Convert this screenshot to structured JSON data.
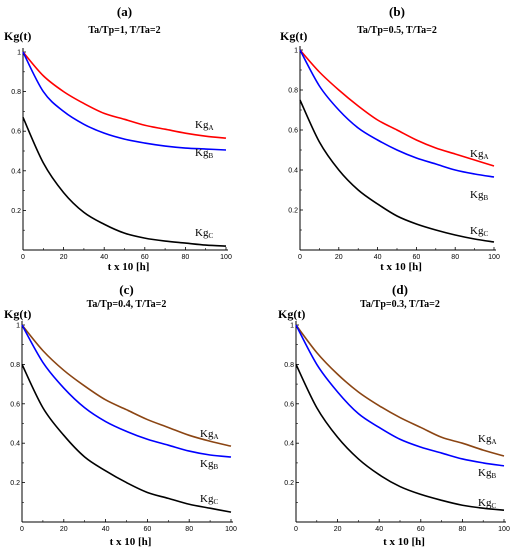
{
  "chart_data": [
    {
      "type": "line",
      "panel_label": "(a)",
      "title": "Ta/Tp=1,  T/Ta=2",
      "ylabel": "Kg(t)",
      "xlabel": "t x 10 [h]",
      "xlim": [
        0,
        100
      ],
      "ylim": [
        0,
        1
      ],
      "xticks": [
        "0",
        "20",
        "40",
        "60",
        "80",
        "100"
      ],
      "yticks": [
        "0.2",
        "0.4",
        "0.6",
        "0.8",
        "1"
      ],
      "grid": false,
      "series": [
        {
          "name": "KgA",
          "label_main": "Kg",
          "label_sub": "A",
          "color": "#ff0000",
          "x": [
            0,
            10,
            20,
            30,
            40,
            50,
            60,
            70,
            80,
            90,
            100
          ],
          "y": [
            1.0,
            0.88,
            0.8,
            0.74,
            0.69,
            0.66,
            0.63,
            0.61,
            0.59,
            0.575,
            0.565
          ]
        },
        {
          "name": "KgB",
          "label_main": "Kg",
          "label_sub": "B",
          "color": "#0000ff",
          "x": [
            0,
            10,
            20,
            30,
            40,
            50,
            60,
            70,
            80,
            90,
            100
          ],
          "y": [
            1.0,
            0.8,
            0.7,
            0.635,
            0.59,
            0.56,
            0.54,
            0.525,
            0.515,
            0.51,
            0.505
          ]
        },
        {
          "name": "KgC",
          "label_main": "Kg",
          "label_sub": "C",
          "color": "#000000",
          "x": [
            0,
            10,
            20,
            30,
            40,
            50,
            60,
            70,
            80,
            90,
            100
          ],
          "y": [
            0.67,
            0.44,
            0.29,
            0.19,
            0.13,
            0.085,
            0.06,
            0.045,
            0.035,
            0.025,
            0.02
          ]
        }
      ]
    },
    {
      "type": "line",
      "panel_label": "(b)",
      "title": "Ta/Tp=0.5,  T/Ta=2",
      "ylabel": "Kg(t)",
      "xlabel": "t x 10 [h]",
      "xlim": [
        0,
        100
      ],
      "ylim": [
        0,
        1
      ],
      "xticks": [
        "0",
        "20",
        "40",
        "60",
        "80",
        "100"
      ],
      "yticks": [
        "0.2",
        "0.4",
        "0.6",
        "0.8",
        "1"
      ],
      "grid": false,
      "series": [
        {
          "name": "KgA",
          "label_main": "Kg",
          "label_sub": "A",
          "color": "#ff0000",
          "x": [
            0,
            10,
            20,
            30,
            40,
            50,
            60,
            70,
            80,
            90,
            100
          ],
          "y": [
            1.0,
            0.89,
            0.8,
            0.72,
            0.65,
            0.6,
            0.55,
            0.51,
            0.48,
            0.45,
            0.42
          ]
        },
        {
          "name": "KgB",
          "label_main": "Kg",
          "label_sub": "B",
          "color": "#0000ff",
          "x": [
            0,
            10,
            20,
            30,
            40,
            50,
            60,
            70,
            80,
            90,
            100
          ],
          "y": [
            1.0,
            0.82,
            0.7,
            0.61,
            0.55,
            0.5,
            0.46,
            0.43,
            0.4,
            0.38,
            0.365
          ]
        },
        {
          "name": "KgC",
          "label_main": "Kg",
          "label_sub": "C",
          "color": "#000000",
          "x": [
            0,
            10,
            20,
            30,
            40,
            50,
            60,
            70,
            80,
            90,
            100
          ],
          "y": [
            0.75,
            0.54,
            0.4,
            0.3,
            0.23,
            0.17,
            0.13,
            0.1,
            0.075,
            0.055,
            0.04
          ]
        }
      ]
    },
    {
      "type": "line",
      "panel_label": "(c)",
      "title": "Ta/Tp=0.4,  T/Ta=2",
      "ylabel": "Kg(t)",
      "xlabel": "t x 10 [h]",
      "xlim": [
        0,
        100
      ],
      "ylim": [
        0,
        1
      ],
      "xticks": [
        "0",
        "20",
        "40",
        "60",
        "80",
        "100"
      ],
      "yticks": [
        "0.2",
        "0.4",
        "0.6",
        "0.8",
        "1"
      ],
      "grid": false,
      "series": [
        {
          "name": "KgA",
          "label_main": "Kg",
          "label_sub": "A",
          "color": "#8b4513",
          "x": [
            0,
            10,
            20,
            30,
            40,
            50,
            60,
            70,
            80,
            90,
            100
          ],
          "y": [
            1.0,
            0.87,
            0.77,
            0.69,
            0.62,
            0.57,
            0.52,
            0.48,
            0.44,
            0.41,
            0.385
          ]
        },
        {
          "name": "KgB",
          "label_main": "Kg",
          "label_sub": "B",
          "color": "#0000ff",
          "x": [
            0,
            10,
            20,
            30,
            40,
            50,
            60,
            70,
            80,
            90,
            100
          ],
          "y": [
            1.0,
            0.81,
            0.68,
            0.58,
            0.51,
            0.46,
            0.42,
            0.39,
            0.36,
            0.34,
            0.33
          ]
        },
        {
          "name": "KgC",
          "label_main": "Kg",
          "label_sub": "C",
          "color": "#000000",
          "x": [
            0,
            10,
            20,
            30,
            40,
            50,
            60,
            70,
            80,
            90,
            100
          ],
          "y": [
            0.8,
            0.58,
            0.44,
            0.33,
            0.26,
            0.2,
            0.15,
            0.12,
            0.09,
            0.07,
            0.05
          ]
        }
      ]
    },
    {
      "type": "line",
      "panel_label": "(d)",
      "title": "Ta/Tp=0.3,  T/Ta=2",
      "ylabel": "Kg(t)",
      "xlabel": "t x 10 [h]",
      "xlim": [
        0,
        100
      ],
      "ylim": [
        0,
        1
      ],
      "xticks": [
        "0",
        "20",
        "40",
        "60",
        "80",
        "100"
      ],
      "yticks": [
        "0.2",
        "0.4",
        "0.6",
        "0.8",
        "1"
      ],
      "grid": false,
      "series": [
        {
          "name": "KgA",
          "label_main": "Kg",
          "label_sub": "A",
          "color": "#8b4513",
          "x": [
            0,
            10,
            20,
            30,
            40,
            50,
            60,
            70,
            80,
            90,
            100
          ],
          "y": [
            1.0,
            0.86,
            0.75,
            0.66,
            0.59,
            0.53,
            0.48,
            0.43,
            0.4,
            0.365,
            0.335
          ]
        },
        {
          "name": "KgB",
          "label_main": "Kg",
          "label_sub": "B",
          "color": "#0000ff",
          "x": [
            0,
            10,
            20,
            30,
            40,
            50,
            60,
            70,
            80,
            90,
            100
          ],
          "y": [
            1.0,
            0.8,
            0.66,
            0.55,
            0.48,
            0.42,
            0.38,
            0.35,
            0.32,
            0.3,
            0.285
          ]
        },
        {
          "name": "KgC",
          "label_main": "Kg",
          "label_sub": "C",
          "color": "#000000",
          "x": [
            0,
            10,
            20,
            30,
            40,
            50,
            60,
            70,
            80,
            90,
            100
          ],
          "y": [
            0.8,
            0.58,
            0.43,
            0.32,
            0.24,
            0.18,
            0.14,
            0.11,
            0.085,
            0.07,
            0.06
          ]
        }
      ]
    }
  ]
}
